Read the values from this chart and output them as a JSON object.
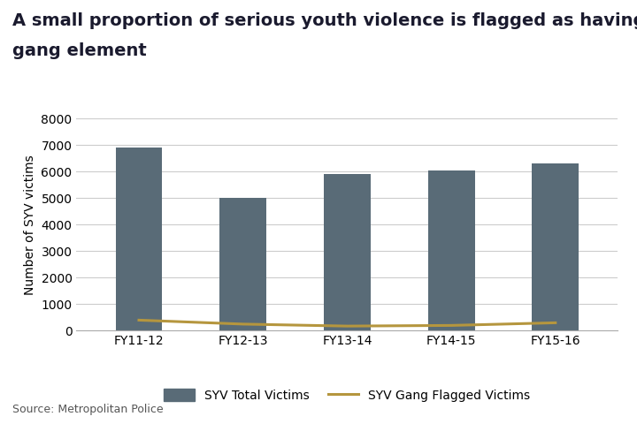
{
  "title_line1": "A small proportion of serious youth violence is flagged as having a",
  "title_line2": "gang element",
  "categories": [
    "FY11-12",
    "FY12-13",
    "FY13-14",
    "FY14-15",
    "FY15-16"
  ],
  "syv_total": [
    6900,
    5000,
    5900,
    6050,
    6300
  ],
  "syv_gang": [
    400,
    250,
    175,
    200,
    300
  ],
  "bar_color": "#596b77",
  "line_color": "#b5963e",
  "ylabel": "Number of SYV victims",
  "ylim": [
    0,
    8000
  ],
  "yticks": [
    0,
    1000,
    2000,
    3000,
    4000,
    5000,
    6000,
    7000,
    8000
  ],
  "legend_bar_label": "SYV Total Victims",
  "legend_line_label": "SYV Gang Flagged Victims",
  "source_text": "Source: Metropolitan Police",
  "background_color": "#ffffff",
  "title_fontsize": 14,
  "axis_fontsize": 10,
  "tick_fontsize": 10,
  "source_fontsize": 9,
  "bar_width": 0.45
}
